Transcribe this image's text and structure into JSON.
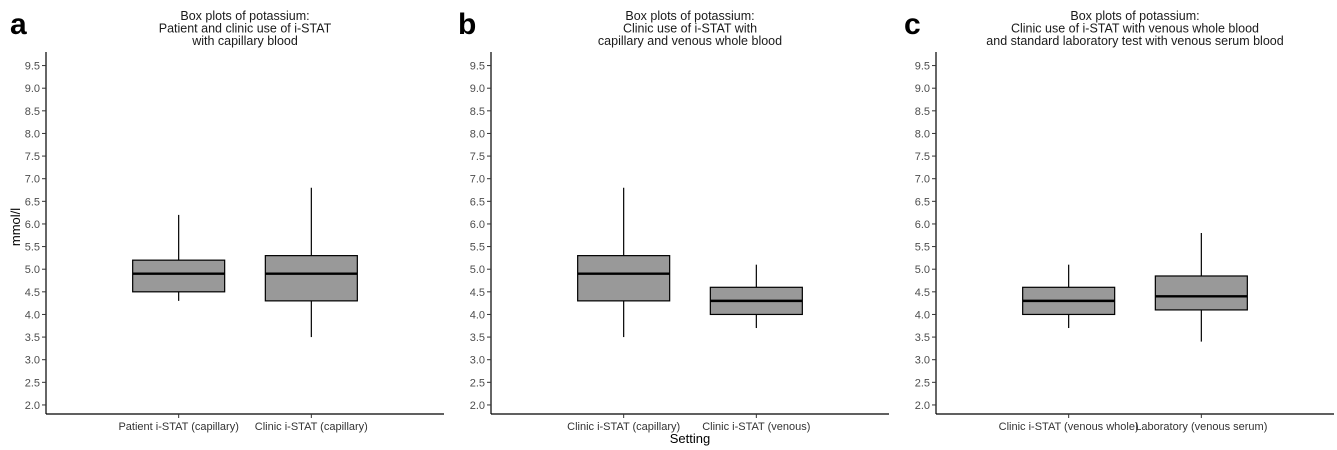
{
  "chart_data": [
    {
      "type": "box",
      "panel_label": "a",
      "title": [
        "Box plots of potassium:",
        "Patient and clinic use of i-STAT",
        "with capillary blood"
      ],
      "ylabel": "mmol/l",
      "xlabel": "",
      "ylim": [
        1.8,
        9.8
      ],
      "yticks": [
        "2.0",
        "2.5",
        "3.0",
        "3.5",
        "4.0",
        "4.5",
        "5.0",
        "5.5",
        "6.0",
        "6.5",
        "7.0",
        "7.5",
        "8.0",
        "8.5",
        "9.0",
        "9.5"
      ],
      "grid": false,
      "categories": [
        "Patient i-STAT (capillary)",
        "Clinic i-STAT (capillary)"
      ],
      "boxes": [
        {
          "min": 4.3,
          "q1": 4.5,
          "median": 4.9,
          "q3": 5.2,
          "max": 6.2
        },
        {
          "min": 3.5,
          "q1": 4.3,
          "median": 4.9,
          "q3": 5.3,
          "max": 6.8
        }
      ]
    },
    {
      "type": "box",
      "panel_label": "b",
      "title": [
        "Box plots of potassium:",
        "Clinic use of i-STAT with",
        "capillary and venous whole blood"
      ],
      "ylabel": "",
      "xlabel": "Setting",
      "ylim": [
        1.8,
        9.8
      ],
      "yticks": [
        "2.0",
        "2.5",
        "3.0",
        "3.5",
        "4.0",
        "4.5",
        "5.0",
        "5.5",
        "6.0",
        "6.5",
        "7.0",
        "7.5",
        "8.0",
        "8.5",
        "9.0",
        "9.5"
      ],
      "grid": false,
      "categories": [
        "Clinic i-STAT (capillary)",
        "Clinic i-STAT (venous)"
      ],
      "boxes": [
        {
          "min": 3.5,
          "q1": 4.3,
          "median": 4.9,
          "q3": 5.3,
          "max": 6.8
        },
        {
          "min": 3.7,
          "q1": 4.0,
          "median": 4.3,
          "q3": 4.6,
          "max": 5.1
        }
      ]
    },
    {
      "type": "box",
      "panel_label": "c",
      "title": [
        "Box plots of potassium:",
        "Clinic use of i-STAT with venous whole blood",
        "and standard laboratory test with venous serum blood"
      ],
      "ylabel": "",
      "xlabel": "",
      "ylim": [
        1.8,
        9.8
      ],
      "yticks": [
        "2.0",
        "2.5",
        "3.0",
        "3.5",
        "4.0",
        "4.5",
        "5.0",
        "5.5",
        "6.0",
        "6.5",
        "7.0",
        "7.5",
        "8.0",
        "8.5",
        "9.0",
        "9.5"
      ],
      "grid": false,
      "categories": [
        "Clinic i-STAT (venous whole)",
        "Laboratory (venous serum)"
      ],
      "boxes": [
        {
          "min": 3.7,
          "q1": 4.0,
          "median": 4.3,
          "q3": 4.6,
          "max": 5.1
        },
        {
          "min": 3.4,
          "q1": 4.1,
          "median": 4.4,
          "q3": 4.85,
          "max": 5.8
        }
      ]
    }
  ],
  "colors": {
    "box_fill": "#999999",
    "stroke": "#000000"
  }
}
